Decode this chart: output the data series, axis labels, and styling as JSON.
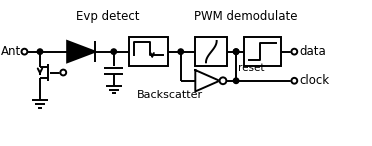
{
  "bg_color": "#ffffff",
  "line_color": "#000000",
  "lw": 1.4,
  "title_evp": "Evp detect",
  "title_pwm": "PWM demodulate",
  "label_ant": "Ant",
  "label_data": "data",
  "label_clock": "clock",
  "label_backscatter": "Backscatter",
  "label_reset": "reset",
  "figsize": [
    3.72,
    1.46
  ],
  "dpi": 100
}
